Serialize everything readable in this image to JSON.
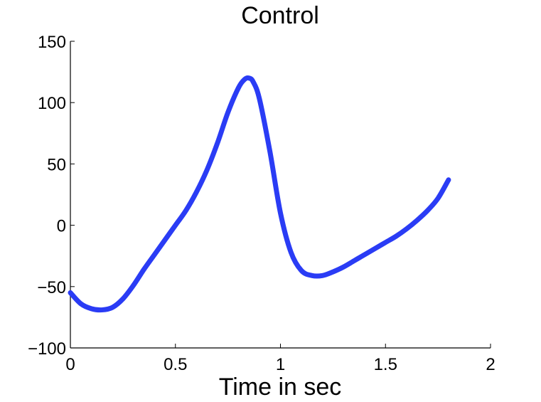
{
  "chart_data": {
    "type": "line",
    "title": "Control",
    "xlabel": "Time in sec",
    "ylabel": "",
    "xlim": [
      0,
      2
    ],
    "ylim": [
      -100,
      150
    ],
    "x_ticks": [
      0,
      0.5,
      1,
      1.5,
      2
    ],
    "x_tick_labels": [
      "0",
      "0.5",
      "1",
      "1.5",
      "2"
    ],
    "y_ticks": [
      -100,
      -50,
      0,
      50,
      100,
      150
    ],
    "y_tick_labels": [
      "−100",
      "−50",
      "0",
      "50",
      "100",
      "150"
    ],
    "grid": false,
    "legend": "none",
    "series": [
      {
        "color": "#2a3cf5",
        "x": [
          0,
          0.05,
          0.1,
          0.15,
          0.2,
          0.25,
          0.3,
          0.35,
          0.4,
          0.45,
          0.5,
          0.55,
          0.6,
          0.65,
          0.7,
          0.75,
          0.8,
          0.83,
          0.85,
          0.87,
          0.9,
          0.95,
          1.0,
          1.05,
          1.1,
          1.15,
          1.2,
          1.25,
          1.3,
          1.35,
          1.4,
          1.45,
          1.5,
          1.55,
          1.6,
          1.65,
          1.7,
          1.75,
          1.8
        ],
        "y": [
          -55,
          -64,
          -68,
          -69,
          -67,
          -60,
          -49,
          -36,
          -24,
          -12,
          0,
          12,
          27,
          45,
          67,
          92,
          112,
          119,
          120,
          117,
          103,
          60,
          10,
          -22,
          -37,
          -41,
          -41,
          -38,
          -34,
          -29,
          -24,
          -19,
          -14,
          -9,
          -3,
          4,
          12,
          22,
          37
        ]
      }
    ]
  }
}
